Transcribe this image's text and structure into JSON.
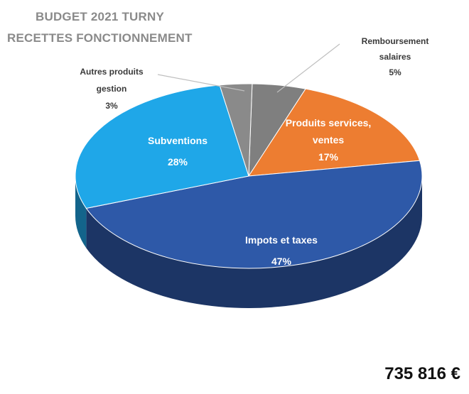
{
  "title_line1": "BUDGET 2021 TURNY",
  "title_line2": "RECETTES FONCTIONNEMENT",
  "total": "735 816 €",
  "chart_data": {
    "type": "pie",
    "title": "BUDGET 2021 TURNY RECETTES FONCTIONNEMENT",
    "slices": [
      {
        "label": "Remboursement salaires",
        "value": 5,
        "pct_label": "5%",
        "color": "#7f7f7f"
      },
      {
        "label": "Produits services, ventes",
        "value": 17,
        "pct_label": "17%",
        "color": "#ed7d31"
      },
      {
        "label": "Impots et taxes",
        "value": 47,
        "pct_label": "47%",
        "color": "#2e59a8"
      },
      {
        "label": "Subventions",
        "value": 28,
        "pct_label": "28%",
        "color": "#1fa7e8"
      },
      {
        "label": "Autres produits gestion",
        "value": 3,
        "pct_label": "3%",
        "color": "#8a8a8a"
      }
    ]
  },
  "label_lines": {
    "remb": [
      "Remboursement",
      "salaires",
      "5%"
    ],
    "prod": [
      "Produits services,",
      "ventes",
      "17%"
    ],
    "impots": [
      "Impots et taxes",
      "47%"
    ],
    "subv": [
      "Subventions",
      "28%"
    ],
    "autres": [
      "Autres produits",
      "gestion",
      "3%"
    ]
  }
}
